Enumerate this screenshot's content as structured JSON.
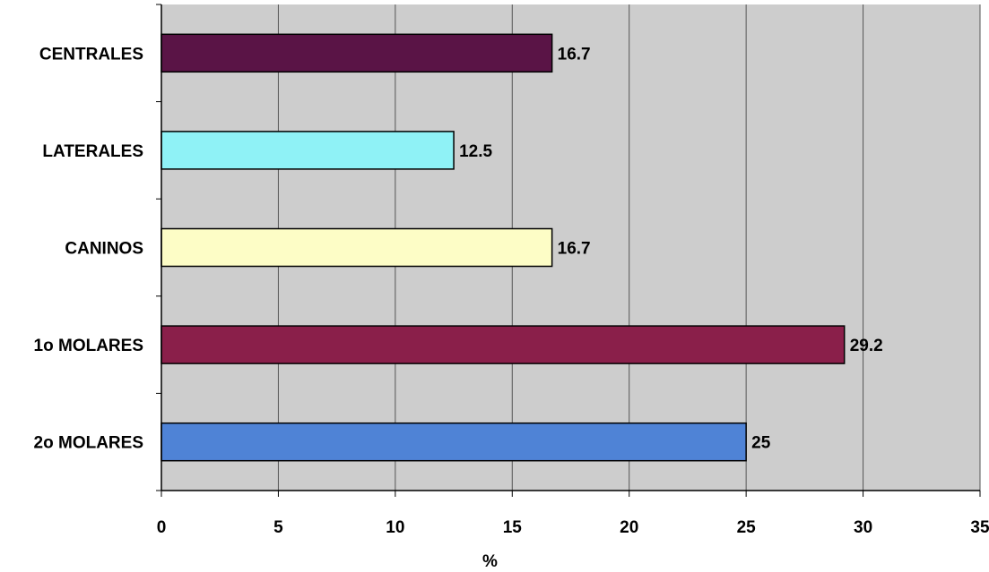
{
  "chart_data": {
    "type": "bar",
    "orientation": "horizontal",
    "categories": [
      "CENTRALES",
      "LATERALES",
      "CANINOS",
      "1o MOLARES",
      "2o MOLARES"
    ],
    "values": [
      16.7,
      12.5,
      16.7,
      29.2,
      25
    ],
    "data_labels": [
      "16.7",
      "12.5",
      "16.7",
      "29.2",
      "25"
    ],
    "bar_colors": [
      "#5a1446",
      "#8ff2f6",
      "#fdfdc6",
      "#8a1f4a",
      "#4f83d6"
    ],
    "xlabel": "%",
    "xlim": [
      0,
      35
    ],
    "x_ticks": [
      0,
      5,
      10,
      15,
      20,
      25,
      30,
      35
    ],
    "x_tick_labels": [
      "0",
      "5",
      "10",
      "15",
      "20",
      "25",
      "30",
      "35"
    ],
    "grid": true,
    "plot_background": "#cdcdcd"
  }
}
